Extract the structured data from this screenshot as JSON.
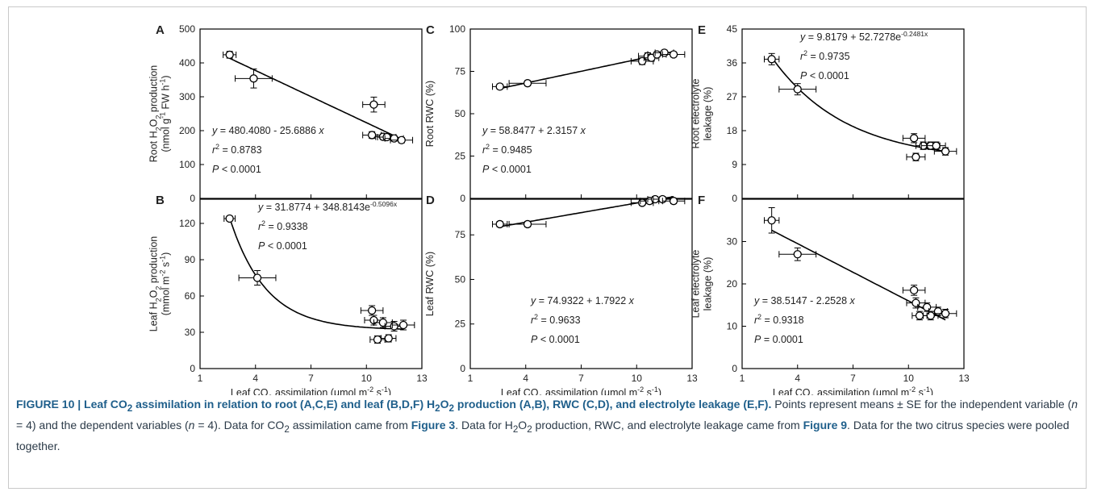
{
  "figure_label": "FIGURE 10",
  "caption": {
    "title_html": "FIGURE 10 | Leaf CO<sub>2</sub> assimilation in relation to root (A,C,E) and leaf (B,D,F) H<sub>2</sub>O<sub>2</sub> production (A,B), RWC (C,D), and electrolyte leakage (E,F).",
    "body_html": " Points represent means ± SE for the independent variable (<i>n</i> = 4) and the dependent variables (<i>n</i> = 4). Data for CO<sub>2</sub> assimilation came from <b class=\"cap-bold\">Figure 3</b>. Data for H<sub>2</sub>O<sub>2</sub> production, RWC, and electrolyte leakage came from <b class=\"cap-bold\">Figure 9</b>. Data for the two citrus species were pooled together."
  },
  "xaxis": {
    "label": "Leaf CO₂ assimilation (μmol m⁻² s⁻¹)",
    "label_parts": [
      "Leaf CO",
      "2",
      " assimilation (μmol m",
      "-2",
      " s",
      "-1",
      ")"
    ],
    "ticks": [
      1,
      4,
      7,
      10,
      13
    ],
    "lim": [
      1,
      13
    ]
  },
  "chart_data": [
    {
      "panel": "A",
      "type": "scatter",
      "ylabel": "Root H2O2 production (nmol g-1 FW h-1)",
      "ylabel_parts": [
        [
          "Root H",
          "2",
          "O",
          "2",
          " production"
        ],
        [
          "(nmol g",
          "-1",
          " FW h",
          "-1",
          ")"
        ]
      ],
      "ylim": [
        0,
        500
      ],
      "yticks": [
        0,
        100,
        200,
        300,
        400,
        500
      ],
      "points": [
        {
          "x": 2.6,
          "y": 424,
          "xerr": 0.35,
          "yerr": 10
        },
        {
          "x": 3.9,
          "y": 354,
          "xerr": 1.0,
          "yerr": 28
        },
        {
          "x": 10.4,
          "y": 277,
          "xerr": 0.6,
          "yerr": 22
        },
        {
          "x": 10.3,
          "y": 187,
          "xerr": 0.5,
          "yerr": 10
        },
        {
          "x": 10.9,
          "y": 182,
          "xerr": 0.4,
          "yerr": 8
        },
        {
          "x": 11.1,
          "y": 181,
          "xerr": 0.5,
          "yerr": 8
        },
        {
          "x": 11.5,
          "y": 177,
          "xerr": 0.5,
          "yerr": 8
        },
        {
          "x": 11.9,
          "y": 172,
          "xerr": 0.6,
          "yerr": 8
        }
      ],
      "fit": {
        "kind": "linear",
        "a": 480.408,
        "b": -25.6886,
        "x_range": [
          2.6,
          12.0
        ]
      },
      "annotations": {
        "eq": "y = 480.4080 - 25.6886 x",
        "r2": "0.8783",
        "p": "< 0.0001"
      },
      "ann_pos": "lower-left"
    },
    {
      "panel": "B",
      "type": "scatter",
      "ylabel": "Leaf H2O2 production (mmol m-2 s-1)",
      "ylabel_parts": [
        [
          "Leaf H",
          "2",
          "O",
          "2",
          " production"
        ],
        [
          "(mmol m",
          "-2",
          " s",
          "-1",
          ")"
        ]
      ],
      "ylim": [
        0,
        140
      ],
      "yticks": [
        0,
        30,
        60,
        90,
        120
      ],
      "points": [
        {
          "x": 2.6,
          "y": 124,
          "xerr": 0.3,
          "yerr": 2
        },
        {
          "x": 4.1,
          "y": 75,
          "xerr": 1.0,
          "yerr": 6
        },
        {
          "x": 10.3,
          "y": 48,
          "xerr": 0.6,
          "yerr": 4
        },
        {
          "x": 10.4,
          "y": 40,
          "xerr": 0.5,
          "yerr": 4
        },
        {
          "x": 10.6,
          "y": 24,
          "xerr": 0.4,
          "yerr": 3
        },
        {
          "x": 10.9,
          "y": 38,
          "xerr": 0.5,
          "yerr": 4
        },
        {
          "x": 11.2,
          "y": 25,
          "xerr": 0.4,
          "yerr": 3
        },
        {
          "x": 11.5,
          "y": 35,
          "xerr": 0.5,
          "yerr": 4
        },
        {
          "x": 12.0,
          "y": 36,
          "xerr": 0.6,
          "yerr": 4
        }
      ],
      "fit": {
        "kind": "exp",
        "a": 31.8774,
        "b": 348.8143,
        "c": -0.5096,
        "x_range": [
          2.6,
          12.0
        ]
      },
      "annotations": {
        "eq": "y = 31.8774 + 348.8143e",
        "eq_sup": "-0.5096x",
        "r2": "0.9338",
        "p": "< 0.0001"
      },
      "ann_pos": "top"
    },
    {
      "panel": "C",
      "type": "scatter",
      "ylabel": "Root RWC (%)",
      "ylabel_parts": [
        [
          "Root RWC (%)"
        ]
      ],
      "ylim": [
        0,
        100
      ],
      "yticks": [
        0,
        25,
        50,
        75,
        100
      ],
      "points": [
        {
          "x": 2.6,
          "y": 66,
          "xerr": 0.4,
          "yerr": 1.5
        },
        {
          "x": 4.1,
          "y": 68,
          "xerr": 1.0,
          "yerr": 1.5
        },
        {
          "x": 10.3,
          "y": 81,
          "xerr": 0.6,
          "yerr": 2
        },
        {
          "x": 10.6,
          "y": 84,
          "xerr": 0.5,
          "yerr": 2
        },
        {
          "x": 10.8,
          "y": 83,
          "xerr": 0.4,
          "yerr": 2
        },
        {
          "x": 11.1,
          "y": 85,
          "xerr": 0.5,
          "yerr": 1.5
        },
        {
          "x": 11.5,
          "y": 86,
          "xerr": 0.5,
          "yerr": 1.5
        },
        {
          "x": 12.0,
          "y": 85,
          "xerr": 0.6,
          "yerr": 1.5
        }
      ],
      "fit": {
        "kind": "linear",
        "a": 58.8477,
        "b": 2.3157,
        "x_range": [
          2.6,
          12.0
        ]
      },
      "annotations": {
        "eq": "y = 58.8477 + 2.3157 x",
        "r2": "0.9485",
        "p": "< 0.0001"
      },
      "ann_pos": "lower-left"
    },
    {
      "panel": "D",
      "type": "scatter",
      "ylabel": "Leaf RWC (%)",
      "ylabel_parts": [
        [
          "Leaf RWC (%)"
        ]
      ],
      "ylim": [
        0,
        95
      ],
      "yticks": [
        0,
        25,
        50,
        75
      ],
      "points": [
        {
          "x": 2.6,
          "y": 81,
          "xerr": 0.4,
          "yerr": 1.5
        },
        {
          "x": 4.1,
          "y": 81,
          "xerr": 1.0,
          "yerr": 1.5
        },
        {
          "x": 10.3,
          "y": 93,
          "xerr": 0.6,
          "yerr": 1.5
        },
        {
          "x": 10.7,
          "y": 94,
          "xerr": 0.5,
          "yerr": 1.5
        },
        {
          "x": 11.0,
          "y": 95,
          "xerr": 0.4,
          "yerr": 1.5
        },
        {
          "x": 11.4,
          "y": 95,
          "xerr": 0.5,
          "yerr": 1.5
        },
        {
          "x": 12.0,
          "y": 94,
          "xerr": 0.6,
          "yerr": 1.5
        }
      ],
      "fit": {
        "kind": "linear",
        "a": 74.9322,
        "b": 1.7922,
        "x_range": [
          2.6,
          12.0
        ]
      },
      "annotations": {
        "eq": "y = 74.9322 + 1.7922 x",
        "r2": "0.9633",
        "p": "< 0.0001"
      },
      "ann_pos": "lower-right"
    },
    {
      "panel": "E",
      "type": "scatter",
      "ylabel": "Root electrolyte leakage (%)",
      "ylabel_parts": [
        [
          "Root electrolyte"
        ],
        [
          "leakage (%)"
        ]
      ],
      "ylim": [
        0,
        45
      ],
      "yticks": [
        0,
        9,
        18,
        27,
        36,
        45
      ],
      "points": [
        {
          "x": 2.6,
          "y": 37,
          "xerr": 0.4,
          "yerr": 1.5
        },
        {
          "x": 4.0,
          "y": 29,
          "xerr": 1.0,
          "yerr": 1.5
        },
        {
          "x": 10.3,
          "y": 16,
          "xerr": 0.6,
          "yerr": 1.2
        },
        {
          "x": 10.4,
          "y": 11,
          "xerr": 0.5,
          "yerr": 1.0
        },
        {
          "x": 10.8,
          "y": 14,
          "xerr": 0.4,
          "yerr": 1.0
        },
        {
          "x": 11.2,
          "y": 14,
          "xerr": 0.5,
          "yerr": 1.0
        },
        {
          "x": 11.5,
          "y": 14,
          "xerr": 0.5,
          "yerr": 1.0
        },
        {
          "x": 12.0,
          "y": 12.5,
          "xerr": 0.6,
          "yerr": 1.0
        }
      ],
      "fit": {
        "kind": "exp",
        "a": 9.8179,
        "b": 52.7278,
        "c": -0.2481,
        "x_range": [
          2.6,
          12.0
        ]
      },
      "annotations": {
        "eq": "y = 9.8179 + 52.7278e",
        "eq_sup": "-0.2481x",
        "r2": "0.9735",
        "p": "< 0.0001"
      },
      "ann_pos": "top"
    },
    {
      "panel": "F",
      "type": "scatter",
      "ylabel": "Leaf electrolyte leakage (%)",
      "ylabel_parts": [
        [
          "Leaf electrolyte"
        ],
        [
          "leakage (%)"
        ]
      ],
      "ylim": [
        0,
        40
      ],
      "yticks": [
        0,
        10,
        20,
        30
      ],
      "points": [
        {
          "x": 2.6,
          "y": 35,
          "xerr": 0.4,
          "yerr": 3
        },
        {
          "x": 4.0,
          "y": 27,
          "xerr": 1.0,
          "yerr": 1.5
        },
        {
          "x": 10.3,
          "y": 18.5,
          "xerr": 0.6,
          "yerr": 1.2
        },
        {
          "x": 10.4,
          "y": 15.5,
          "xerr": 0.5,
          "yerr": 1.2
        },
        {
          "x": 10.6,
          "y": 12.5,
          "xerr": 0.4,
          "yerr": 1.0
        },
        {
          "x": 11.0,
          "y": 14.5,
          "xerr": 0.5,
          "yerr": 1.0
        },
        {
          "x": 11.2,
          "y": 12.5,
          "xerr": 0.4,
          "yerr": 1.0
        },
        {
          "x": 11.6,
          "y": 13.5,
          "xerr": 0.5,
          "yerr": 1.0
        },
        {
          "x": 12.0,
          "y": 13,
          "xerr": 0.6,
          "yerr": 1.0
        }
      ],
      "fit": {
        "kind": "linear",
        "a": 38.5147,
        "b": -2.2528,
        "x_range": [
          2.6,
          12.0
        ]
      },
      "annotations": {
        "eq": "y = 38.5147 - 2.2528 x",
        "r2": "0.9318",
        "p": "= 0.0001"
      },
      "ann_pos": "lower-left"
    }
  ]
}
